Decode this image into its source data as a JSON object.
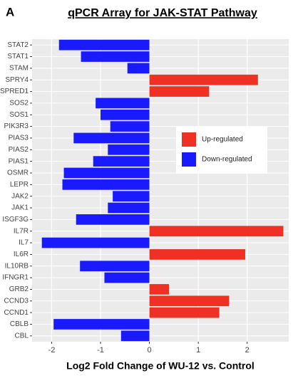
{
  "chart_data": {
    "type": "hbar",
    "panel_label": "A",
    "title": "qPCR Array for JAK-STAT Pathway",
    "x_label": "Log2 Fold Change of WU-12 vs. Control",
    "categories": [
      "STAT2",
      "STAT1",
      "STAM",
      "SPRY4",
      "SPRED1",
      "SOS2",
      "SOS1",
      "PIK3R3",
      "PIAS3",
      "PIAS2",
      "PIAS1",
      "OSMR",
      "LEPR",
      "JAK2",
      "JAK1",
      "ISGF3G",
      "IL7R",
      "IL7",
      "IL6R",
      "IL10RB",
      "IFNGR1",
      "GRB2",
      "CCND3",
      "CCND1",
      "CBLB",
      "CBL"
    ],
    "series": [
      {
        "name": "Up-regulated",
        "color": "#ee3124",
        "values": [
          null,
          null,
          null,
          2.22,
          1.22,
          null,
          null,
          null,
          null,
          null,
          null,
          null,
          null,
          null,
          null,
          null,
          2.74,
          null,
          1.96,
          null,
          null,
          0.4,
          1.63,
          1.43,
          null,
          null
        ]
      },
      {
        "name": "Down-regulated",
        "color": "#1a1aff",
        "values": [
          -1.85,
          -1.4,
          -0.45,
          null,
          null,
          -1.1,
          -1.0,
          -0.8,
          -1.55,
          -0.85,
          -1.15,
          -1.75,
          -1.78,
          -0.75,
          -0.85,
          -1.5,
          null,
          -2.2,
          null,
          -1.42,
          -0.92,
          null,
          null,
          null,
          -1.96,
          -0.58
        ]
      }
    ],
    "xlim": [
      -2.4,
      2.85
    ],
    "xticks": [
      -2,
      -1,
      0,
      1,
      2
    ],
    "grid": true
  }
}
